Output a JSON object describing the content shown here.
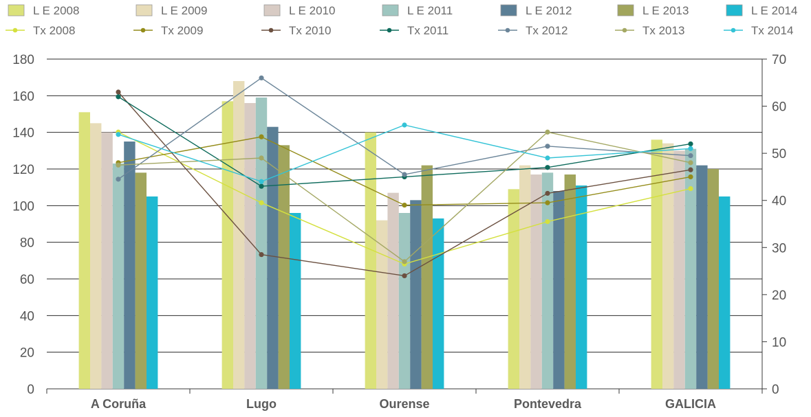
{
  "chart_data": {
    "type": "bar",
    "categories": [
      "A Coruña",
      "Lugo",
      "Ourense",
      "Pontevedra",
      "GALICIA"
    ],
    "y_left": {
      "min": 0,
      "max": 180,
      "ticks": [
        0,
        20,
        40,
        60,
        80,
        100,
        120,
        140,
        160,
        180
      ]
    },
    "y_right": {
      "min": 0,
      "max": 70,
      "ticks": [
        0,
        10,
        20,
        30,
        40,
        50,
        60,
        70
      ]
    },
    "grid": true,
    "legend_position": "top",
    "bar_series": [
      {
        "name": "L E 2008",
        "color": "#dbe27a",
        "values": [
          151,
          157,
          140,
          109,
          136
        ]
      },
      {
        "name": "L E 2009",
        "color": "#e7dcb8",
        "values": [
          145,
          168,
          92,
          122,
          134
        ]
      },
      {
        "name": "L E 2010",
        "color": "#d8cbc4",
        "values": [
          140,
          156,
          107,
          117,
          130
        ]
      },
      {
        "name": "L E 2011",
        "color": "#9ec6c0",
        "values": [
          123,
          159,
          96,
          118,
          131
        ]
      },
      {
        "name": "L E 2012",
        "color": "#5b7f96",
        "values": [
          135,
          143,
          103,
          108,
          122
        ]
      },
      {
        "name": "L E 2013",
        "color": "#a1a55c",
        "values": [
          118,
          133,
          122,
          117,
          120
        ]
      },
      {
        "name": "L E 2014",
        "color": "#1fb9d1",
        "values": [
          105,
          96,
          93,
          111,
          105
        ]
      }
    ],
    "line_series": [
      {
        "name": "Tx 2008",
        "color": "#d4e03f",
        "values": [
          54.5,
          39.5,
          26.5,
          35.5,
          42.5
        ]
      },
      {
        "name": "Tx 2009",
        "color": "#948c1a",
        "values": [
          48.0,
          53.5,
          39.0,
          39.5,
          45.0
        ]
      },
      {
        "name": "Tx 2010",
        "color": "#6b5040",
        "values": [
          63.0,
          28.5,
          24.0,
          41.5,
          46.5
        ]
      },
      {
        "name": "Tx 2011",
        "color": "#0e6b5c",
        "values": [
          62.0,
          43.0,
          45.0,
          47.0,
          52.0
        ]
      },
      {
        "name": "Tx 2012",
        "color": "#6b8599",
        "values": [
          44.5,
          66.0,
          45.5,
          51.5,
          49.5
        ]
      },
      {
        "name": "Tx 2013",
        "color": "#a4a864",
        "values": [
          47.5,
          49.0,
          27.0,
          54.5,
          48.0
        ]
      },
      {
        "name": "Tx 2014",
        "color": "#34c3d6",
        "values": [
          54.0,
          44.0,
          56.0,
          49.0,
          51.0
        ]
      }
    ]
  }
}
